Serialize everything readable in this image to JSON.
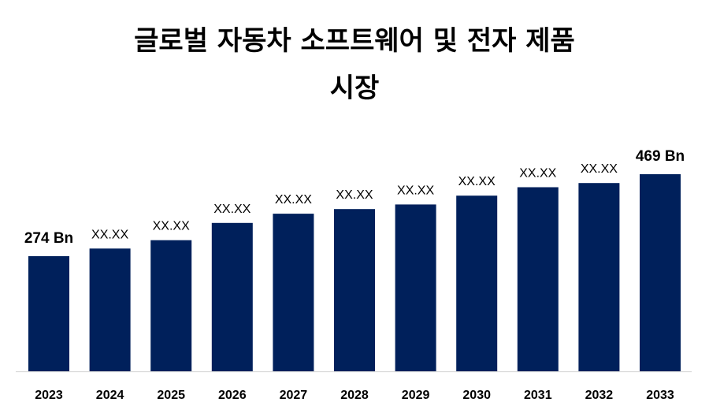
{
  "title_line1": "글로벌 자동차 소프트웨어 및 전자 제품",
  "title_line2": "시장",
  "colors": {
    "bar": "#00205b",
    "axis": "#d9d9d9",
    "text": "#000000"
  },
  "chart_data": {
    "type": "bar",
    "title": "글로벌 자동차 소프트웨어 및 전자 제품 시장",
    "xlabel": "",
    "ylabel": "",
    "categories": [
      "2023",
      "2024",
      "2025",
      "2026",
      "2027",
      "2028",
      "2029",
      "2030",
      "2031",
      "2032",
      "2033"
    ],
    "values": [
      274,
      292,
      312,
      353,
      375,
      386,
      397,
      418,
      438,
      448,
      469
    ],
    "data_labels": [
      "274 Bn",
      "XX.XX",
      "XX.XX",
      "XX.XX",
      "XX.XX",
      "XX.XX",
      "XX.XX",
      "XX.XX",
      "XX.XX",
      "XX.XX",
      "469 Bn"
    ],
    "ylim": [
      0,
      469
    ],
    "grid": false,
    "legend": "none"
  }
}
